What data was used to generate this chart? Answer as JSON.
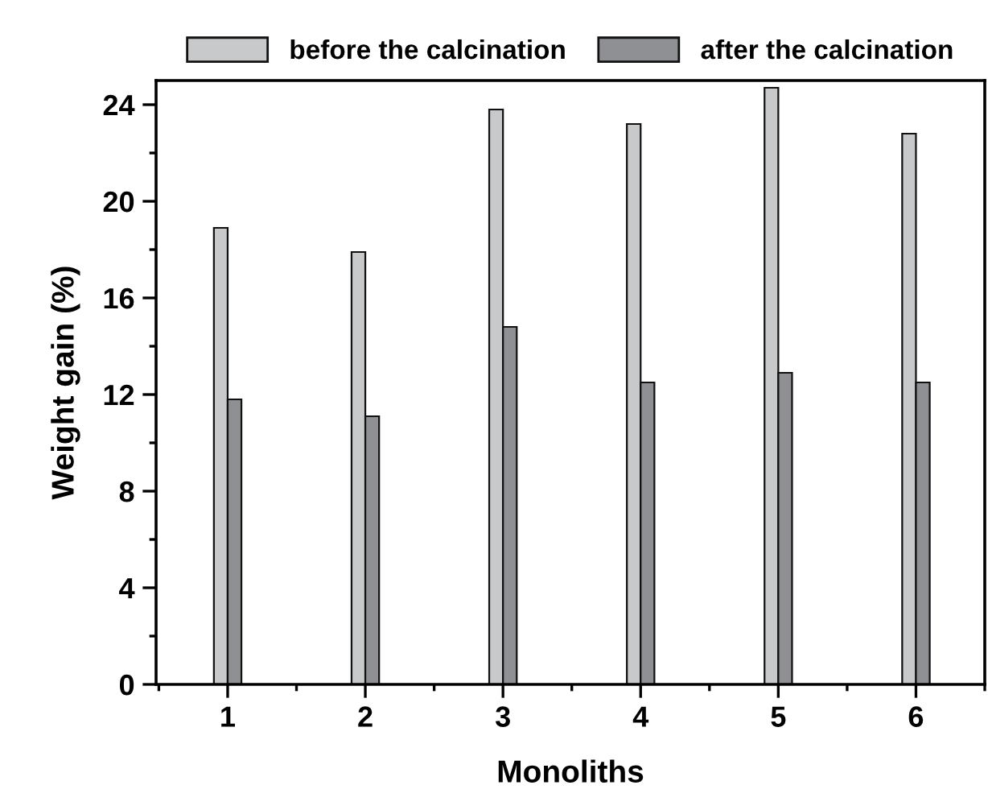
{
  "chart_data": {
    "type": "bar",
    "xlabel": "Monoliths",
    "ylabel": "Weight gain (%)",
    "categories": [
      "1",
      "2",
      "3",
      "4",
      "5",
      "6"
    ],
    "series": [
      {
        "name": "before the calcination",
        "color": "#c8c9cb",
        "values": [
          18.9,
          17.9,
          23.8,
          23.2,
          24.7,
          22.8
        ]
      },
      {
        "name": "after the calcination",
        "color": "#8f9093",
        "values": [
          11.8,
          11.1,
          14.8,
          12.5,
          12.9,
          12.5
        ]
      }
    ],
    "ylim": [
      0,
      25
    ],
    "yticks": [
      0,
      4,
      8,
      12,
      16,
      20,
      24
    ],
    "grid": false,
    "legend": "top"
  }
}
